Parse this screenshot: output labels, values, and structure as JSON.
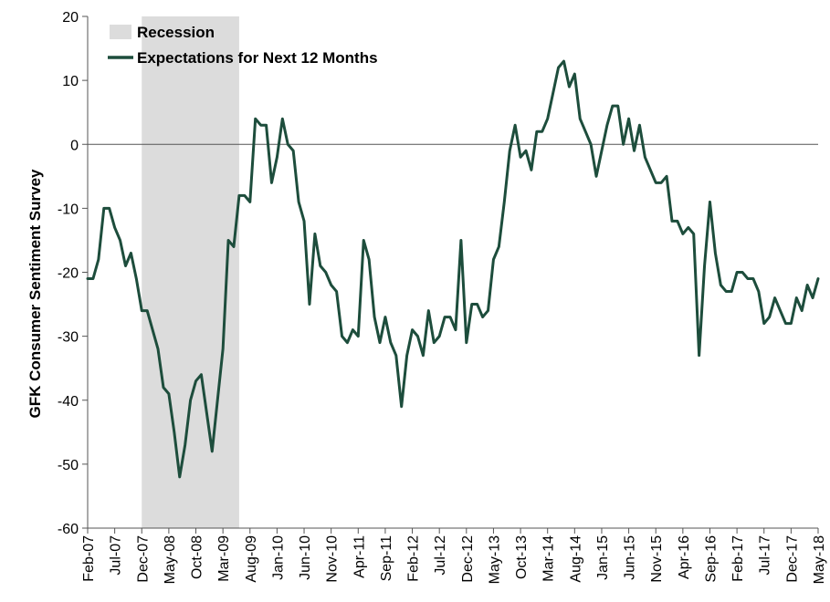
{
  "chart_data": {
    "type": "line",
    "title": "",
    "xlabel": "",
    "ylabel": "GFK Consumer Sentiment Survey",
    "ylim": [
      -60,
      20
    ],
    "yticks": [
      20,
      10,
      0,
      -10,
      -20,
      -30,
      -40,
      -50,
      -60
    ],
    "grid": false,
    "legend_placement": "top-left",
    "x_tick_labels": [
      "Feb-07",
      "Jul-07",
      "Dec-07",
      "May-08",
      "Oct-08",
      "Mar-09",
      "Aug-09",
      "Jan-10",
      "Jun-10",
      "Nov-10",
      "Apr-11",
      "Sep-11",
      "Feb-12",
      "Jul-12",
      "Dec-12",
      "May-13",
      "Oct-13",
      "Mar-14",
      "Aug-14",
      "Jan-15",
      "Jun-15",
      "Nov-15",
      "Apr-16",
      "Sep-16",
      "Feb-17",
      "Jul-17",
      "Dec-17",
      "May-18"
    ],
    "x_range": [
      "Feb-07",
      "May-18"
    ],
    "shaded_regions": [
      {
        "name": "Recession",
        "start": "Dec-07",
        "end": "Jun-09",
        "color": "#dcdcdc"
      }
    ],
    "series": [
      {
        "name": "Expectations for Next 12 Months",
        "color": "#1d4d3c",
        "x": [
          "Feb-07",
          "Mar-07",
          "Apr-07",
          "May-07",
          "Jun-07",
          "Jul-07",
          "Aug-07",
          "Sep-07",
          "Oct-07",
          "Nov-07",
          "Dec-07",
          "Jan-08",
          "Feb-08",
          "Mar-08",
          "Apr-08",
          "May-08",
          "Jun-08",
          "Jul-08",
          "Aug-08",
          "Sep-08",
          "Oct-08",
          "Nov-08",
          "Dec-08",
          "Jan-09",
          "Feb-09",
          "Mar-09",
          "Apr-09",
          "May-09",
          "Jun-09",
          "Jul-09",
          "Aug-09",
          "Sep-09",
          "Oct-09",
          "Nov-09",
          "Dec-09",
          "Jan-10",
          "Feb-10",
          "Mar-10",
          "Apr-10",
          "May-10",
          "Jun-10",
          "Jul-10",
          "Aug-10",
          "Sep-10",
          "Oct-10",
          "Nov-10",
          "Dec-10",
          "Jan-11",
          "Feb-11",
          "Mar-11",
          "Apr-11",
          "May-11",
          "Jun-11",
          "Jul-11",
          "Aug-11",
          "Sep-11",
          "Oct-11",
          "Nov-11",
          "Dec-11",
          "Jan-12",
          "Feb-12",
          "Mar-12",
          "Apr-12",
          "May-12",
          "Jun-12",
          "Jul-12",
          "Aug-12",
          "Sep-12",
          "Oct-12",
          "Nov-12",
          "Dec-12",
          "Jan-13",
          "Feb-13",
          "Mar-13",
          "Apr-13",
          "May-13",
          "Jun-13",
          "Jul-13",
          "Aug-13",
          "Sep-13",
          "Oct-13",
          "Nov-13",
          "Dec-13",
          "Jan-14",
          "Feb-14",
          "Mar-14",
          "Apr-14",
          "May-14",
          "Jun-14",
          "Jul-14",
          "Aug-14",
          "Sep-14",
          "Oct-14",
          "Nov-14",
          "Dec-14",
          "Jan-15",
          "Feb-15",
          "Mar-15",
          "Apr-15",
          "May-15",
          "Jun-15",
          "Jul-15",
          "Aug-15",
          "Sep-15",
          "Oct-15",
          "Nov-15",
          "Dec-15",
          "Jan-16",
          "Feb-16",
          "Mar-16",
          "Apr-16",
          "May-16",
          "Jun-16",
          "Jul-16",
          "Aug-16",
          "Sep-16",
          "Oct-16",
          "Nov-16",
          "Dec-16",
          "Jan-17",
          "Feb-17",
          "Mar-17",
          "Apr-17",
          "May-17",
          "Jun-17",
          "Jul-17",
          "Aug-17",
          "Sep-17",
          "Oct-17",
          "Nov-17",
          "Dec-17",
          "Jan-18",
          "Feb-18",
          "Mar-18",
          "Apr-18",
          "May-18"
        ],
        "values": [
          -21,
          -21,
          -18,
          -10,
          -10,
          -13,
          -15,
          -19,
          -17,
          -21,
          -26,
          -26,
          -29,
          -32,
          -38,
          -39,
          -45,
          -52,
          -47,
          -40,
          -37,
          -36,
          -42,
          -48,
          -40,
          -32,
          -15,
          -16,
          -8,
          -8,
          -9,
          4,
          3,
          3,
          -6,
          -2,
          4,
          0,
          -1,
          -9,
          -12,
          -25,
          -14,
          -19,
          -20,
          -22,
          -23,
          -30,
          -31,
          -29,
          -30,
          -15,
          -18,
          -27,
          -31,
          -27,
          -31,
          -33,
          -41,
          -33,
          -29,
          -30,
          -33,
          -26,
          -31,
          -30,
          -27,
          -27,
          -29,
          -15,
          -31,
          -25,
          -25,
          -27,
          -26,
          -18,
          -16,
          -9,
          -1,
          3,
          -2,
          -1,
          -4,
          2,
          2,
          4,
          8,
          12,
          13,
          9,
          11,
          4,
          2,
          0,
          -5,
          -1,
          3,
          6,
          6,
          0,
          4,
          -1,
          3,
          -2,
          -4,
          -6,
          -6,
          -5,
          -12,
          -12,
          -14,
          -13,
          -14,
          -33,
          -19,
          -9,
          -17,
          -22,
          -23,
          -23,
          -20,
          -20,
          -21,
          -21,
          -23,
          -28,
          -27,
          -24,
          -26,
          -28,
          -28,
          -24,
          -26,
          -22,
          -24,
          -21
        ]
      }
    ]
  }
}
